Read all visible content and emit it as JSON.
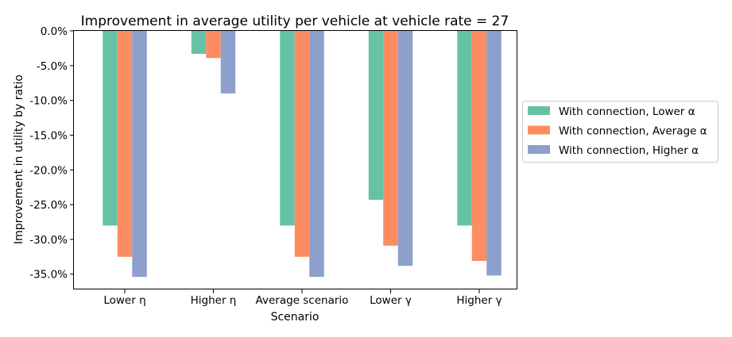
{
  "chart_data": {
    "type": "bar",
    "title": "Improvement in average utility per vehicle at vehicle rate = 27",
    "xlabel": "Scenario",
    "ylabel": "Improvement in utility by ratio",
    "categories": [
      "Lower η",
      "Higher η",
      "Average scenario",
      "Lower γ",
      "Higher γ"
    ],
    "series": [
      {
        "name": "With connection, Lower α",
        "color": "#66c2a5",
        "values": [
          -0.28,
          -0.033,
          -0.28,
          -0.243,
          -0.28
        ]
      },
      {
        "name": "With connection, Average α",
        "color": "#fc8d62",
        "values": [
          -0.325,
          -0.039,
          -0.325,
          -0.309,
          -0.331
        ]
      },
      {
        "name": "With connection, Higher α",
        "color": "#8da0cb",
        "values": [
          -0.354,
          -0.09,
          -0.354,
          -0.338,
          -0.352
        ]
      }
    ],
    "ylim": [
      -0.372,
      0.0
    ],
    "yticks": [
      0.0,
      -0.05,
      -0.1,
      -0.15,
      -0.2,
      -0.25,
      -0.3,
      -0.35
    ],
    "ytick_labels": [
      "0.0%",
      "-5.0%",
      "-10.0%",
      "-15.0%",
      "-20.0%",
      "-25.0%",
      "-30.0%",
      "-35.0%"
    ],
    "grid": false,
    "legend_position": "outside-right"
  }
}
